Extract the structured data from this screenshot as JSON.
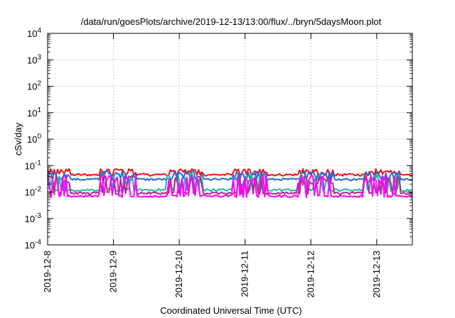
{
  "chart_data": {
    "type": "line",
    "title": "/data/run/goesPlots/archive/2019-12-13/13:00/flux/../bryn/5daysMoon.plot",
    "xlabel": "Coordinated Universal Time (UTC)",
    "ylabel": "cSv/day",
    "yscale": "log",
    "ylim_exp": [
      -4,
      4
    ],
    "y_ticks": [
      {
        "base": "10",
        "exp": "-4"
      },
      {
        "base": "10",
        "exp": "-3"
      },
      {
        "base": "10",
        "exp": "-2"
      },
      {
        "base": "10",
        "exp": "-1"
      },
      {
        "base": "10",
        "exp": "0"
      },
      {
        "base": "10",
        "exp": "1"
      },
      {
        "base": "10",
        "exp": "2"
      },
      {
        "base": "10",
        "exp": "3"
      },
      {
        "base": "10",
        "exp": "4"
      }
    ],
    "xlim": [
      "2019-12-08",
      "2019-12-13T13:00"
    ],
    "x_ticks": [
      "2019-12-8",
      "2019-12-9",
      "2019-12-10",
      "2019-12-11",
      "2019-12-12",
      "2019-12-13"
    ],
    "grid": true,
    "series": [
      {
        "color": "#ee1111",
        "baseline": 0.045,
        "spikes_to": 0.075
      },
      {
        "color": "#1f6fe0",
        "baseline": 0.03,
        "spikes_to": 0.065
      },
      {
        "color": "#20b7a0",
        "baseline": 0.012,
        "spikes_to": 0.05
      },
      {
        "color": "#b02a8e",
        "baseline": 0.009,
        "spikes_to": 0.04
      },
      {
        "color": "#ff00ff",
        "baseline": 0.007,
        "spikes_to": 0.045
      }
    ]
  }
}
